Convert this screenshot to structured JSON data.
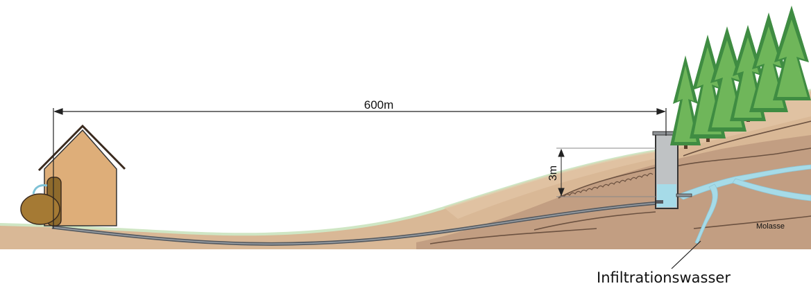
{
  "labels": {
    "distance": "600m",
    "height": "3m",
    "rock_layer": "Molasse",
    "infiltration": "Infiltrationswasser"
  },
  "colors": {
    "ground": "#d9b896",
    "soil_deep": "#c29e82",
    "grass_edge": "#cfe6c4",
    "house_wall": "#deae79",
    "trough": "#8e6a2c",
    "water": "#a6dbe8",
    "pipe": "#555a60",
    "tree_dark": "#3f8c42",
    "tree_light": "#6fb65a",
    "shaft": "#bfc2c4"
  },
  "icons": [
    "house-icon",
    "fountain-trough-icon",
    "fir-tree-icon",
    "spring-shaft-icon"
  ]
}
